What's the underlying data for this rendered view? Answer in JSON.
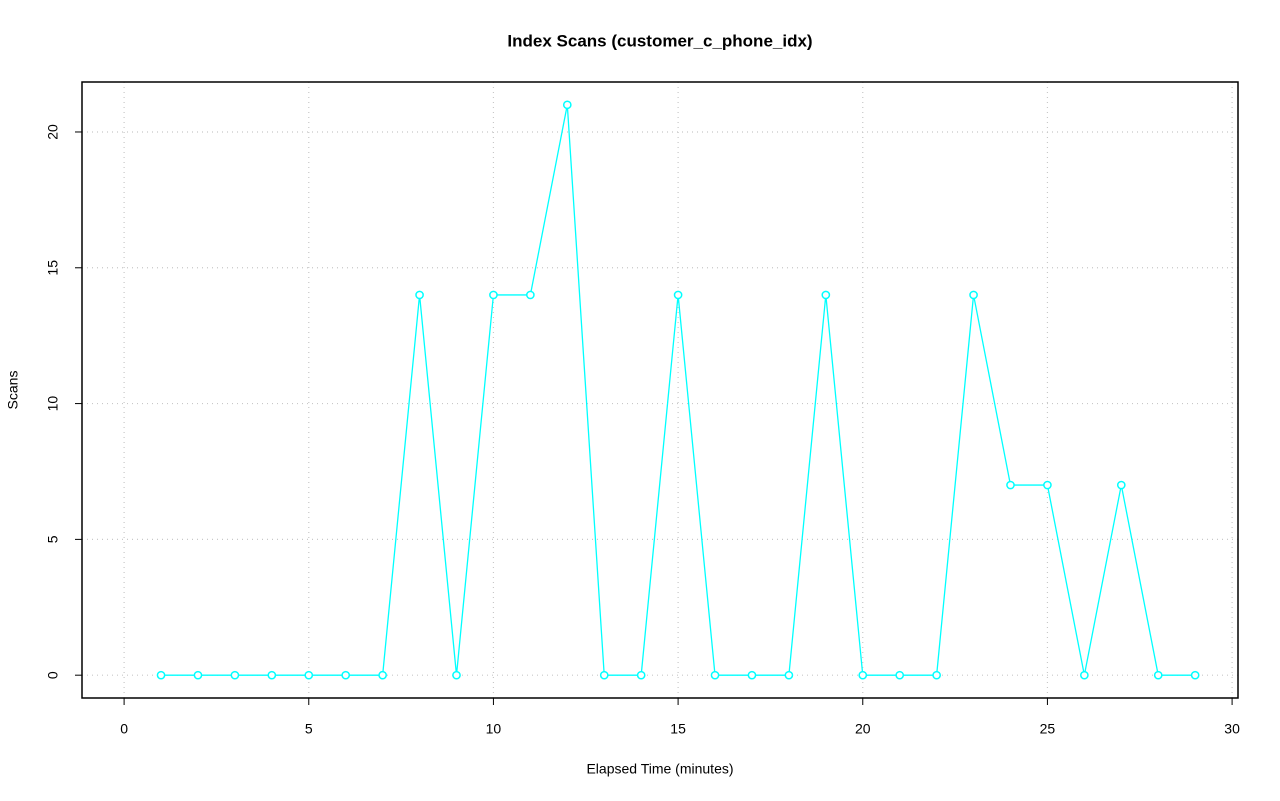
{
  "chart_data": {
    "type": "line",
    "title": "Index Scans (customer_c_phone_idx)",
    "x_label": "Elapsed Time (minutes)",
    "y_label": "Scans",
    "x": [
      1,
      2,
      3,
      4,
      5,
      6,
      7,
      8,
      9,
      10,
      11,
      12,
      13,
      14,
      15,
      16,
      17,
      18,
      19,
      20,
      21,
      22,
      23,
      24,
      25,
      26,
      27,
      28,
      29
    ],
    "series": [
      {
        "name": "customer_c_phone_idx",
        "color": "cyan",
        "values": [
          0,
          0,
          0,
          0,
          0,
          0,
          0,
          14,
          0,
          14,
          14,
          21,
          0,
          0,
          14,
          0,
          0,
          0,
          14,
          0,
          0,
          0,
          14,
          7,
          7,
          0,
          7,
          0,
          0
        ]
      }
    ],
    "xlim": [
      -1.14,
      30.16
    ],
    "xticks": [
      0,
      5,
      10,
      15,
      20,
      25,
      30
    ],
    "ylim": [
      -0.84,
      21.84
    ],
    "yticks": [
      0,
      5,
      10,
      15,
      20
    ],
    "grid": true
  }
}
